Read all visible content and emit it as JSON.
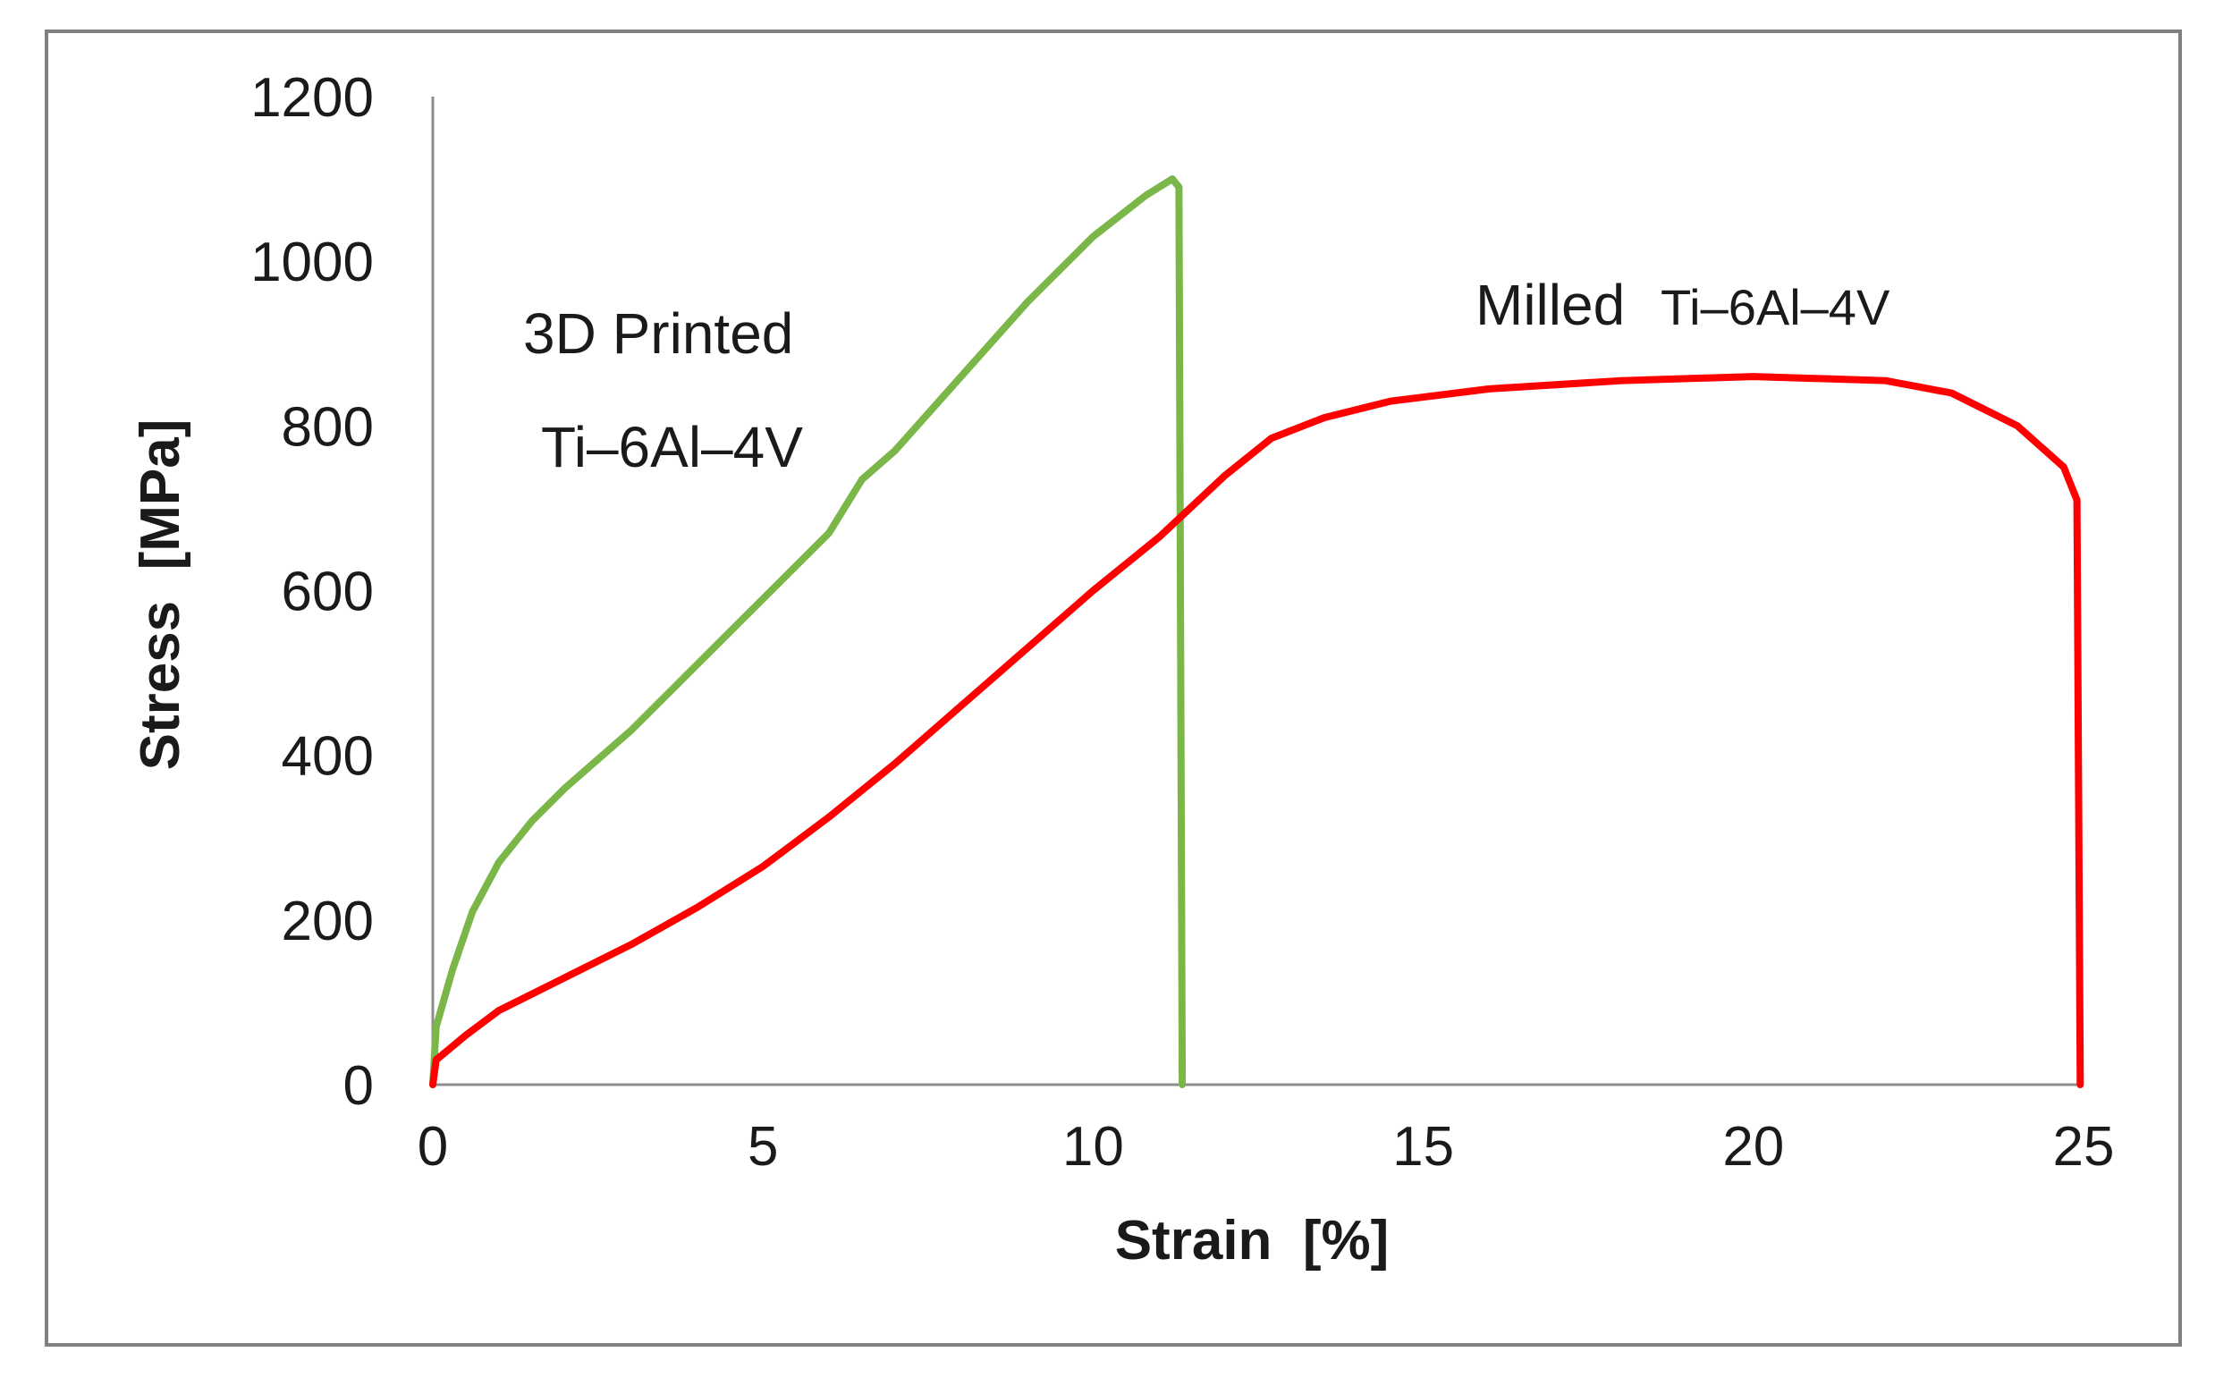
{
  "chart_data": {
    "type": "line",
    "xlabel": "Strain  [%]",
    "ylabel": "Stress  [MPa]",
    "xlim": [
      0,
      25
    ],
    "ylim": [
      0,
      1200
    ],
    "x_ticks": [
      0,
      5,
      10,
      15,
      20,
      25
    ],
    "y_ticks": [
      0,
      200,
      400,
      600,
      800,
      1000,
      1200
    ],
    "grid": false,
    "legend": "none",
    "annotations": [
      {
        "id": "printed-line1",
        "text": "3D Printed",
        "series": "3D Printed"
      },
      {
        "id": "printed-line2",
        "text": "Ti–6Al–4V",
        "series": "3D Printed"
      },
      {
        "id": "milled-a",
        "text": "Milled",
        "series": "Milled"
      },
      {
        "id": "milled-b",
        "text": "Ti–6Al–4V",
        "series": "Milled"
      }
    ],
    "series": [
      {
        "name": "3D Printed",
        "color": "#7ab648",
        "points": [
          [
            0,
            0
          ],
          [
            0.05,
            70
          ],
          [
            0.3,
            140
          ],
          [
            0.6,
            210
          ],
          [
            1.0,
            270
          ],
          [
            1.5,
            320
          ],
          [
            2.0,
            360
          ],
          [
            3.0,
            430
          ],
          [
            4.0,
            510
          ],
          [
            5.0,
            590
          ],
          [
            6.0,
            670
          ],
          [
            6.5,
            735
          ],
          [
            7.0,
            770
          ],
          [
            8.0,
            860
          ],
          [
            9.0,
            950
          ],
          [
            10.0,
            1030
          ],
          [
            10.8,
            1080
          ],
          [
            11.2,
            1100
          ],
          [
            11.3,
            1090
          ],
          [
            11.35,
            0
          ]
        ]
      },
      {
        "name": "Milled",
        "color": "#ff0000",
        "points": [
          [
            0,
            0
          ],
          [
            0.05,
            30
          ],
          [
            0.5,
            60
          ],
          [
            1.0,
            90
          ],
          [
            2.0,
            130
          ],
          [
            3.0,
            170
          ],
          [
            4.0,
            215
          ],
          [
            5.0,
            265
          ],
          [
            6.0,
            325
          ],
          [
            7.0,
            390
          ],
          [
            8.0,
            460
          ],
          [
            9.0,
            530
          ],
          [
            10.0,
            600
          ],
          [
            11.0,
            665
          ],
          [
            12.0,
            740
          ],
          [
            12.7,
            785
          ],
          [
            13.5,
            810
          ],
          [
            14.5,
            830
          ],
          [
            16.0,
            845
          ],
          [
            18.0,
            855
          ],
          [
            20.0,
            860
          ],
          [
            22.0,
            855
          ],
          [
            23.0,
            840
          ],
          [
            24.0,
            800
          ],
          [
            24.7,
            750
          ],
          [
            24.9,
            710
          ],
          [
            24.95,
            0
          ]
        ]
      }
    ]
  }
}
